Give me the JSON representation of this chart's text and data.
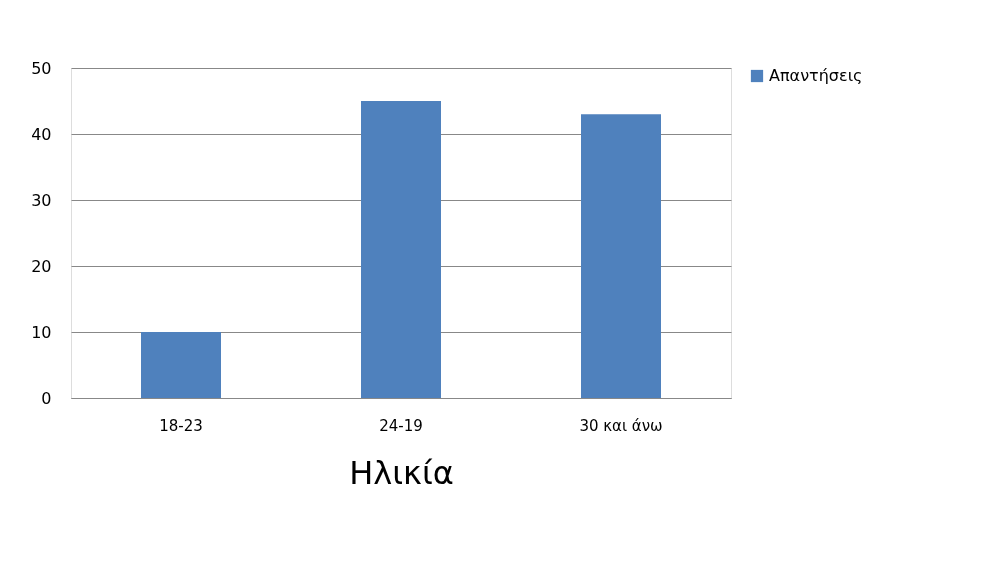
{
  "chart_data": {
    "type": "bar",
    "xlabel": "Ηλικία",
    "categories": [
      "18-23",
      "24-19",
      "30 και άνω"
    ],
    "series": [
      {
        "name": "Απαντήσεις",
        "color": "#4f81bd",
        "values": [
          10,
          45,
          43
        ]
      }
    ],
    "ylim": [
      0,
      50
    ],
    "yticks": [
      0,
      10,
      20,
      30,
      40,
      50
    ],
    "grid": "y",
    "legend": "right"
  }
}
